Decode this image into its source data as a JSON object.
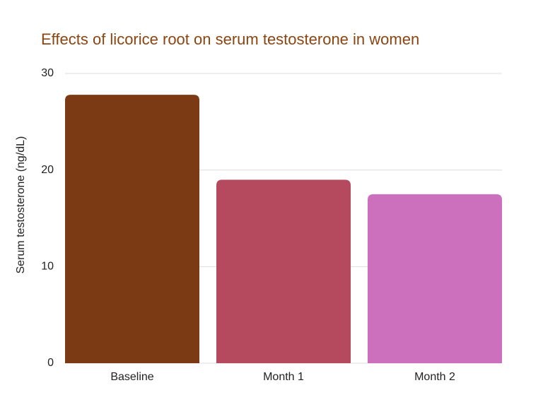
{
  "chart_data": {
    "type": "bar",
    "title": "Effects of licorice root on serum testosterone in women",
    "y_label": "Serum testosterone (ng/dL)",
    "categories": [
      "Baseline",
      "Month 1",
      "Month 2"
    ],
    "values": [
      27.8,
      19.0,
      17.5
    ],
    "colors": [
      "#7b3a14",
      "#b54a5e",
      "#cc70bd"
    ],
    "ylim": [
      0,
      30
    ],
    "yticks": [
      0,
      10,
      20,
      30
    ],
    "grid": true
  }
}
